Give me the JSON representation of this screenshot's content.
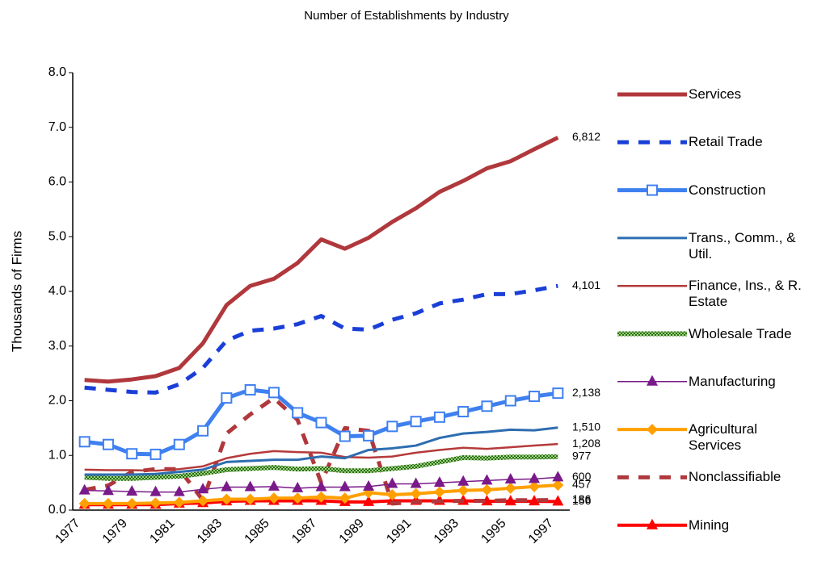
{
  "chart_data": {
    "type": "line",
    "title": "Number of Establishments by Industry",
    "y_label": "Thousands of Firms",
    "categories": [
      "1977",
      null,
      "1979",
      null,
      "1981",
      null,
      "1983",
      null,
      "1985",
      null,
      "1987",
      null,
      "1989",
      null,
      "1991",
      null,
      "1993",
      null,
      "1995",
      null,
      "1997"
    ],
    "ylim": [
      0,
      8
    ],
    "yticks": [
      {
        "value": 0,
        "label": "0.0"
      },
      {
        "value": 1,
        "label": "1.0"
      },
      {
        "value": 2,
        "label": "2.0"
      },
      {
        "value": 3,
        "label": "3.0"
      },
      {
        "value": 4,
        "label": "4.0"
      },
      {
        "value": 5,
        "label": "5.0"
      },
      {
        "value": 6,
        "label": "6.0"
      },
      {
        "value": 7,
        "label": "7.0"
      },
      {
        "value": 8,
        "label": "8.0"
      }
    ],
    "legend": "right",
    "series": [
      {
        "name": "Services",
        "color": "#b0383c",
        "values": [
          2.38,
          2.35,
          2.39,
          2.45,
          2.6,
          3.05,
          3.75,
          4.1,
          4.23,
          4.52,
          4.95,
          4.78,
          4.98,
          5.27,
          5.52,
          5.82,
          6.02,
          6.25,
          6.38,
          6.6,
          6.812
        ],
        "value_labels": [
          null,
          null,
          null,
          null,
          null,
          null,
          null,
          null,
          null,
          null,
          null,
          null,
          null,
          null,
          null,
          null,
          null,
          null,
          null,
          null,
          "6,812"
        ]
      },
      {
        "name": "Retail Trade",
        "color": "#1a3fd8",
        "values": [
          2.24,
          2.2,
          2.16,
          2.15,
          2.3,
          2.6,
          3.1,
          3.28,
          3.32,
          3.4,
          3.55,
          3.32,
          3.3,
          3.48,
          3.6,
          3.78,
          3.85,
          3.95,
          3.95,
          4.02,
          4.101
        ],
        "value_labels": [
          null,
          null,
          null,
          null,
          null,
          null,
          null,
          null,
          null,
          null,
          null,
          null,
          null,
          null,
          null,
          null,
          null,
          null,
          null,
          null,
          "4,101"
        ]
      },
      {
        "name": "Construction",
        "color": "#3f80f0",
        "values": [
          1.25,
          1.2,
          1.03,
          1.02,
          1.2,
          1.45,
          2.05,
          2.2,
          2.15,
          1.78,
          1.6,
          1.35,
          1.36,
          1.53,
          1.62,
          1.7,
          1.8,
          1.9,
          2.0,
          2.08,
          2.138
        ],
        "value_labels": [
          null,
          null,
          null,
          null,
          null,
          null,
          null,
          null,
          null,
          null,
          null,
          null,
          null,
          null,
          null,
          null,
          null,
          null,
          null,
          null,
          "2,138"
        ]
      },
      {
        "name": "Trans., Comm., & Util.",
        "color": "#2e6db0",
        "values": [
          0.65,
          0.65,
          0.65,
          0.66,
          0.7,
          0.74,
          0.88,
          0.9,
          0.92,
          0.92,
          0.98,
          0.95,
          1.1,
          1.13,
          1.18,
          1.32,
          1.4,
          1.43,
          1.47,
          1.46,
          1.51
        ],
        "value_labels": [
          null,
          null,
          null,
          null,
          null,
          null,
          null,
          null,
          null,
          null,
          null,
          null,
          null,
          null,
          null,
          null,
          null,
          null,
          null,
          null,
          "1,510"
        ]
      },
      {
        "name": "Finance, Ins., & R. Estate",
        "color": "#b53a3a",
        "values": [
          0.74,
          0.73,
          0.73,
          0.72,
          0.75,
          0.8,
          0.95,
          1.03,
          1.08,
          1.06,
          1.05,
          0.97,
          0.96,
          0.98,
          1.05,
          1.1,
          1.14,
          1.12,
          1.15,
          1.18,
          1.208
        ],
        "value_labels": [
          null,
          null,
          null,
          null,
          null,
          null,
          null,
          null,
          null,
          null,
          null,
          null,
          null,
          null,
          null,
          null,
          null,
          null,
          null,
          null,
          "1,208"
        ]
      },
      {
        "name": "Wholesale Trade",
        "color": "#4a9a2a",
        "values": [
          0.6,
          0.58,
          0.58,
          0.6,
          0.62,
          0.67,
          0.74,
          0.76,
          0.78,
          0.75,
          0.76,
          0.72,
          0.72,
          0.76,
          0.8,
          0.88,
          0.96,
          0.95,
          0.97,
          0.97,
          0.977
        ],
        "value_labels": [
          null,
          null,
          null,
          null,
          null,
          null,
          null,
          null,
          null,
          null,
          null,
          null,
          null,
          null,
          null,
          null,
          null,
          null,
          null,
          null,
          "977"
        ]
      },
      {
        "name": "Manufacturing",
        "color": "#7a1a8a",
        "values": [
          0.36,
          0.35,
          0.34,
          0.33,
          0.33,
          0.38,
          0.42,
          0.42,
          0.43,
          0.4,
          0.42,
          0.42,
          0.43,
          0.48,
          0.48,
          0.5,
          0.52,
          0.54,
          0.56,
          0.57,
          0.6
        ],
        "value_labels": [
          null,
          null,
          null,
          null,
          null,
          null,
          null,
          null,
          null,
          null,
          null,
          null,
          null,
          null,
          null,
          null,
          null,
          null,
          null,
          null,
          "600"
        ]
      },
      {
        "name": "Agricultural Services",
        "color": "#ffa000",
        "values": [
          0.12,
          0.12,
          0.12,
          0.13,
          0.14,
          0.17,
          0.2,
          0.2,
          0.22,
          0.22,
          0.24,
          0.22,
          0.32,
          0.28,
          0.3,
          0.33,
          0.36,
          0.37,
          0.4,
          0.43,
          0.457
        ],
        "value_labels": [
          null,
          null,
          null,
          null,
          null,
          null,
          null,
          null,
          null,
          null,
          null,
          null,
          null,
          null,
          null,
          null,
          null,
          null,
          null,
          null,
          "457"
        ]
      },
      {
        "name": "Nonclassifiable",
        "color": "#b0383c",
        "values": [
          0.37,
          0.45,
          0.7,
          0.75,
          0.75,
          0.18,
          1.4,
          1.75,
          2.05,
          1.65,
          0.5,
          1.5,
          1.45,
          0.12,
          0.15,
          0.16,
          0.17,
          0.17,
          0.18,
          0.18,
          0.186
        ],
        "value_labels": [
          null,
          null,
          null,
          null,
          null,
          null,
          null,
          null,
          null,
          null,
          null,
          null,
          null,
          null,
          null,
          null,
          null,
          null,
          null,
          null,
          "186"
        ]
      },
      {
        "name": "Mining",
        "color": "#ff0000",
        "values": [
          0.1,
          0.1,
          0.1,
          0.1,
          0.12,
          0.13,
          0.16,
          0.17,
          0.17,
          0.17,
          0.17,
          0.15,
          0.15,
          0.17,
          0.17,
          0.17,
          0.17,
          0.16,
          0.16,
          0.16,
          0.156
        ],
        "value_labels": [
          null,
          null,
          null,
          null,
          null,
          null,
          null,
          null,
          null,
          null,
          null,
          null,
          null,
          null,
          null,
          null,
          null,
          null,
          null,
          null,
          "156"
        ]
      }
    ]
  }
}
